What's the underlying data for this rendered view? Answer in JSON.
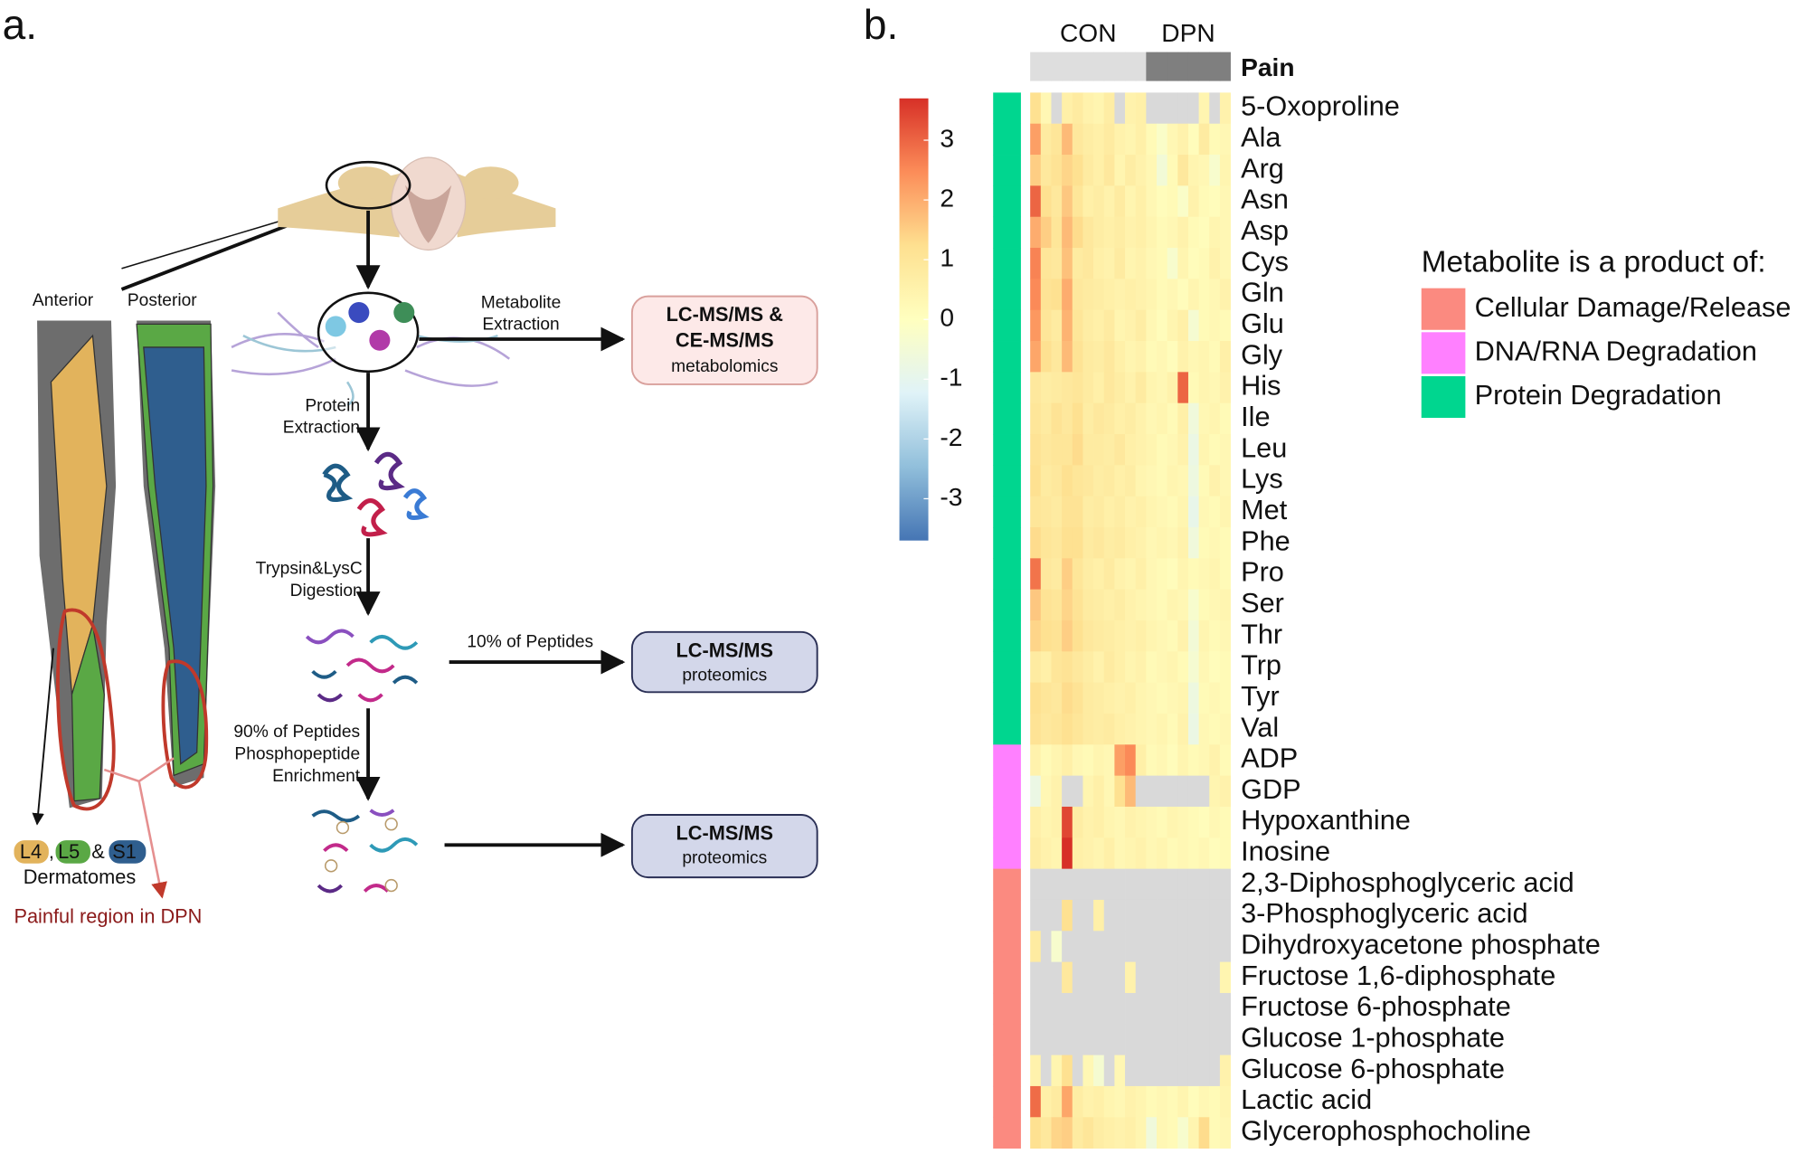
{
  "panel_a": {
    "label": "a.",
    "anterior": "Anterior",
    "posterior": "Posterior",
    "metabolite_extraction": [
      "Metabolite",
      "Extraction"
    ],
    "protein_extraction": [
      "Protein",
      "Extraction"
    ],
    "digestion": [
      "Trypsin&LysC",
      "Digestion"
    ],
    "ten_percent": "10% of Peptides",
    "ninety_percent": [
      "90% of Peptides",
      "Phosphopeptide",
      "Enrichment"
    ],
    "metabolomics_box": [
      "LC-MS/MS &",
      "CE-MS/MS",
      "metabolomics"
    ],
    "proteomics_box_1": [
      "LC-MS/MS",
      "proteomics"
    ],
    "proteomics_box_2": [
      "LC-MS/MS",
      "proteomics"
    ],
    "dermatome_tags": [
      "L4",
      "L5",
      "S1"
    ],
    "comma": ",",
    "ampersand": "&",
    "dermatomes": "Dermatomes",
    "painful_region": "Painful region in DPN"
  },
  "chart_data": {
    "type": "heatmap",
    "label": "b.",
    "categories": [
      "5-Oxoproline",
      "Ala",
      "Arg",
      "Asn",
      "Asp",
      "Cys",
      "Gln",
      "Glu",
      "Gly",
      "His",
      "Ile",
      "Leu",
      "Lys",
      "Met",
      "Phe",
      "Pro",
      "Ser",
      "Thr",
      "Trp",
      "Tyr",
      "Val",
      "ADP",
      "GDP",
      "Hypoxanthine",
      "Inosine",
      "2,3-Diphosphoglyceric acid",
      "3-Phosphoglyceric acid",
      "Dihydroxyacetone phosphate",
      "Fructose 1,6-diphosphate",
      "Fructose 6-phosphate",
      "Glucose 1-phosphate",
      "Glucose 6-phosphate",
      "Lactic acid",
      "Glycerophosphocholine"
    ],
    "column_annotation": "Pain",
    "column_groups": [
      {
        "name": "CON",
        "color": "#dedede"
      },
      {
        "name": "DPN",
        "color": "#7f7f7f"
      }
    ],
    "column_group": [
      0,
      0,
      0,
      0,
      0,
      0,
      0,
      0,
      0,
      0,
      0,
      1,
      1,
      1,
      1,
      1,
      1,
      1,
      1
    ],
    "legend_title": "Metabolite is a product of:",
    "row_groups": [
      {
        "name": "Cellular Damage/Release",
        "color": "#fb8a80"
      },
      {
        "name": "DNA/RNA Degradation",
        "color": "#ff80ff"
      },
      {
        "name": "Protein Degradation",
        "color": "#00d68f"
      }
    ],
    "row_group": [
      2,
      2,
      2,
      2,
      2,
      2,
      2,
      2,
      2,
      2,
      2,
      2,
      2,
      2,
      2,
      2,
      2,
      2,
      2,
      2,
      2,
      1,
      1,
      1,
      1,
      0,
      0,
      0,
      0,
      0,
      0,
      0,
      0,
      0
    ],
    "zlim": [
      -3.7,
      3.7
    ],
    "zticks": [
      -3,
      -2,
      -1,
      0,
      1,
      2,
      3
    ],
    "colors": [
      "#4575b4",
      "#91bfdb",
      "#e0f3f8",
      "#ffffbf",
      "#fee090",
      "#fc8d59",
      "#d73027"
    ],
    "null_color": "#d9d9d9",
    "values": [
      [
        1.2,
        0.3,
        null,
        0.6,
        0.8,
        0.5,
        0.4,
        0.7,
        null,
        0.5,
        0.6,
        null,
        null,
        null,
        null,
        null,
        0.4,
        null,
        0.5
      ],
      [
        2.2,
        0.8,
        1.0,
        1.8,
        0.9,
        0.7,
        0.6,
        0.8,
        0.5,
        0.4,
        0.6,
        0.2,
        -0.2,
        0.3,
        0.5,
        0.1,
        0.8,
        0.2,
        0.3
      ],
      [
        1.5,
        0.9,
        1.1,
        1.4,
        1.2,
        0.8,
        0.6,
        0.9,
        0.4,
        0.7,
        0.5,
        0.3,
        -0.5,
        0.2,
        0.9,
        0.4,
        0.3,
        -0.3,
        0.4
      ],
      [
        3.0,
        1.2,
        0.9,
        1.6,
        1.0,
        0.6,
        0.7,
        0.5,
        0.8,
        0.4,
        0.6,
        0.3,
        0.1,
        0.2,
        -0.2,
        0.5,
        0.2,
        0.1,
        0.3
      ],
      [
        2.0,
        1.5,
        1.0,
        1.8,
        1.3,
        0.9,
        0.7,
        0.6,
        0.7,
        0.5,
        0.6,
        0.4,
        0.2,
        0.3,
        0.5,
        0.2,
        0.1,
        0.4,
        0.3
      ],
      [
        2.6,
        1.0,
        0.9,
        1.7,
        0.8,
        0.9,
        0.6,
        0.5,
        0.8,
        0.4,
        0.5,
        0.3,
        0.2,
        -0.3,
        0.4,
        0.1,
        0.2,
        0.5,
        0.3
      ],
      [
        2.5,
        1.1,
        1.2,
        2.0,
        0.9,
        0.8,
        0.7,
        0.6,
        0.5,
        0.6,
        0.5,
        0.4,
        0.2,
        0.3,
        0.1,
        0.4,
        0.2,
        0.3,
        0.5
      ],
      [
        2.3,
        1.0,
        0.8,
        1.9,
        1.0,
        0.7,
        0.6,
        0.8,
        0.4,
        0.5,
        0.7,
        0.3,
        0.1,
        0.4,
        0.6,
        -0.4,
        0.2,
        0.3,
        0.2
      ],
      [
        2.1,
        1.2,
        0.9,
        1.8,
        1.1,
        0.8,
        0.7,
        0.9,
        0.6,
        0.4,
        0.5,
        0.2,
        0.3,
        0.1,
        0.5,
        0.3,
        0.4,
        0.2,
        0.6
      ],
      [
        0.9,
        0.7,
        0.8,
        0.9,
        1.0,
        0.8,
        0.6,
        0.9,
        0.7,
        0.5,
        0.8,
        0.4,
        0.3,
        0.5,
        3.0,
        0.2,
        0.4,
        0.3,
        0.5
      ],
      [
        1.0,
        0.8,
        1.1,
        0.9,
        1.2,
        0.7,
        0.9,
        0.8,
        0.6,
        0.7,
        0.5,
        0.3,
        0.4,
        0.2,
        0.6,
        -0.6,
        0.3,
        0.4,
        0.2
      ],
      [
        1.1,
        0.9,
        1.0,
        1.0,
        1.3,
        0.8,
        0.8,
        0.7,
        0.9,
        0.6,
        0.5,
        0.4,
        0.2,
        0.3,
        0.5,
        -0.8,
        0.4,
        0.2,
        0.3
      ],
      [
        1.2,
        0.8,
        0.9,
        1.2,
        1.0,
        0.9,
        0.7,
        0.8,
        0.6,
        0.7,
        0.4,
        0.3,
        0.2,
        0.4,
        0.3,
        -0.7,
        0.2,
        0.5,
        0.3
      ],
      [
        1.0,
        0.9,
        0.8,
        1.1,
        1.1,
        0.7,
        0.8,
        0.6,
        0.7,
        0.5,
        0.6,
        0.4,
        0.3,
        0.2,
        0.4,
        -0.9,
        0.3,
        0.2,
        0.4
      ],
      [
        1.3,
        1.0,
        0.9,
        1.2,
        1.2,
        0.8,
        0.9,
        0.7,
        0.8,
        0.6,
        0.5,
        0.3,
        0.4,
        0.3,
        0.5,
        -0.6,
        0.2,
        0.3,
        0.2
      ],
      [
        2.8,
        0.9,
        0.8,
        1.5,
        1.0,
        0.7,
        0.6,
        0.8,
        0.5,
        0.4,
        0.6,
        0.3,
        0.2,
        0.1,
        0.4,
        0.2,
        0.3,
        0.4,
        0.2
      ],
      [
        1.6,
        1.1,
        1.0,
        1.4,
        1.1,
        0.8,
        0.7,
        0.6,
        0.7,
        0.5,
        0.4,
        0.3,
        0.2,
        0.4,
        0.3,
        -0.3,
        0.2,
        0.3,
        0.4
      ],
      [
        1.4,
        1.2,
        1.1,
        1.5,
        1.2,
        0.9,
        0.8,
        0.7,
        0.6,
        0.5,
        0.6,
        0.4,
        0.3,
        0.2,
        0.5,
        -0.5,
        0.4,
        0.2,
        0.3
      ],
      [
        0.8,
        0.6,
        1.0,
        1.1,
        0.9,
        0.7,
        0.5,
        0.8,
        0.6,
        0.4,
        0.5,
        0.2,
        0.3,
        0.4,
        0.2,
        -0.4,
        0.3,
        0.1,
        0.2
      ],
      [
        1.2,
        1.0,
        0.9,
        1.3,
        1.1,
        0.8,
        0.7,
        0.6,
        0.5,
        0.6,
        0.4,
        0.3,
        0.2,
        0.3,
        0.4,
        -0.7,
        0.2,
        0.3,
        0.2
      ],
      [
        1.1,
        0.9,
        1.0,
        1.2,
        1.0,
        0.8,
        0.7,
        0.8,
        0.6,
        0.5,
        0.4,
        0.3,
        0.4,
        0.2,
        0.5,
        -0.8,
        0.3,
        0.2,
        0.3
      ],
      [
        0.5,
        0.2,
        0.4,
        0.6,
        0.3,
        0.2,
        0.4,
        0.3,
        2.2,
        2.5,
        0.6,
        0.2,
        0.3,
        0.1,
        0.4,
        0.2,
        0.3,
        0.5,
        0.2
      ],
      [
        -0.8,
        0.3,
        0.5,
        null,
        null,
        0.4,
        0.6,
        0.3,
        1.2,
        1.8,
        null,
        null,
        null,
        null,
        null,
        null,
        null,
        0.4,
        0.5
      ],
      [
        0.6,
        0.4,
        0.5,
        3.4,
        0.7,
        0.5,
        0.6,
        0.4,
        0.3,
        0.5,
        0.4,
        0.3,
        0.2,
        0.4,
        0.3,
        0.2,
        0.1,
        0.3,
        0.2
      ],
      [
        0.7,
        0.5,
        0.4,
        3.7,
        0.6,
        0.5,
        0.4,
        0.6,
        0.3,
        0.4,
        0.5,
        0.3,
        0.4,
        0.2,
        0.3,
        0.2,
        0.3,
        0.1,
        0.2
      ],
      [
        null,
        null,
        null,
        null,
        null,
        null,
        null,
        null,
        null,
        null,
        null,
        null,
        null,
        null,
        null,
        null,
        null,
        null,
        null
      ],
      [
        null,
        null,
        null,
        1.2,
        null,
        null,
        0.6,
        null,
        null,
        null,
        null,
        null,
        null,
        null,
        null,
        null,
        null,
        null,
        null
      ],
      [
        0.8,
        null,
        -0.3,
        null,
        null,
        null,
        null,
        null,
        null,
        null,
        null,
        null,
        null,
        null,
        null,
        null,
        null,
        null,
        null
      ],
      [
        null,
        null,
        null,
        0.9,
        null,
        null,
        null,
        null,
        null,
        0.5,
        null,
        null,
        null,
        null,
        null,
        null,
        null,
        null,
        0.4
      ],
      [
        null,
        null,
        null,
        null,
        null,
        null,
        null,
        null,
        null,
        null,
        null,
        null,
        null,
        null,
        null,
        null,
        null,
        null,
        null
      ],
      [
        null,
        null,
        null,
        null,
        null,
        null,
        null,
        null,
        null,
        null,
        null,
        null,
        null,
        null,
        null,
        null,
        null,
        null,
        null
      ],
      [
        0.5,
        null,
        0.4,
        1.2,
        null,
        0.3,
        -0.4,
        null,
        0.3,
        null,
        null,
        null,
        null,
        null,
        null,
        null,
        null,
        null,
        0.5
      ],
      [
        2.9,
        0.6,
        0.8,
        2.1,
        0.7,
        0.5,
        0.6,
        0.4,
        0.3,
        0.5,
        0.4,
        0.2,
        0.3,
        0.2,
        0.4,
        0.1,
        0.3,
        0.2,
        0.4
      ],
      [
        1.2,
        0.9,
        1.4,
        1.5,
        0.8,
        1.0,
        0.7,
        0.6,
        0.5,
        0.6,
        0.4,
        -0.6,
        0.3,
        0.2,
        -0.3,
        0.4,
        1.3,
        0.2,
        0.3
      ]
    ]
  }
}
